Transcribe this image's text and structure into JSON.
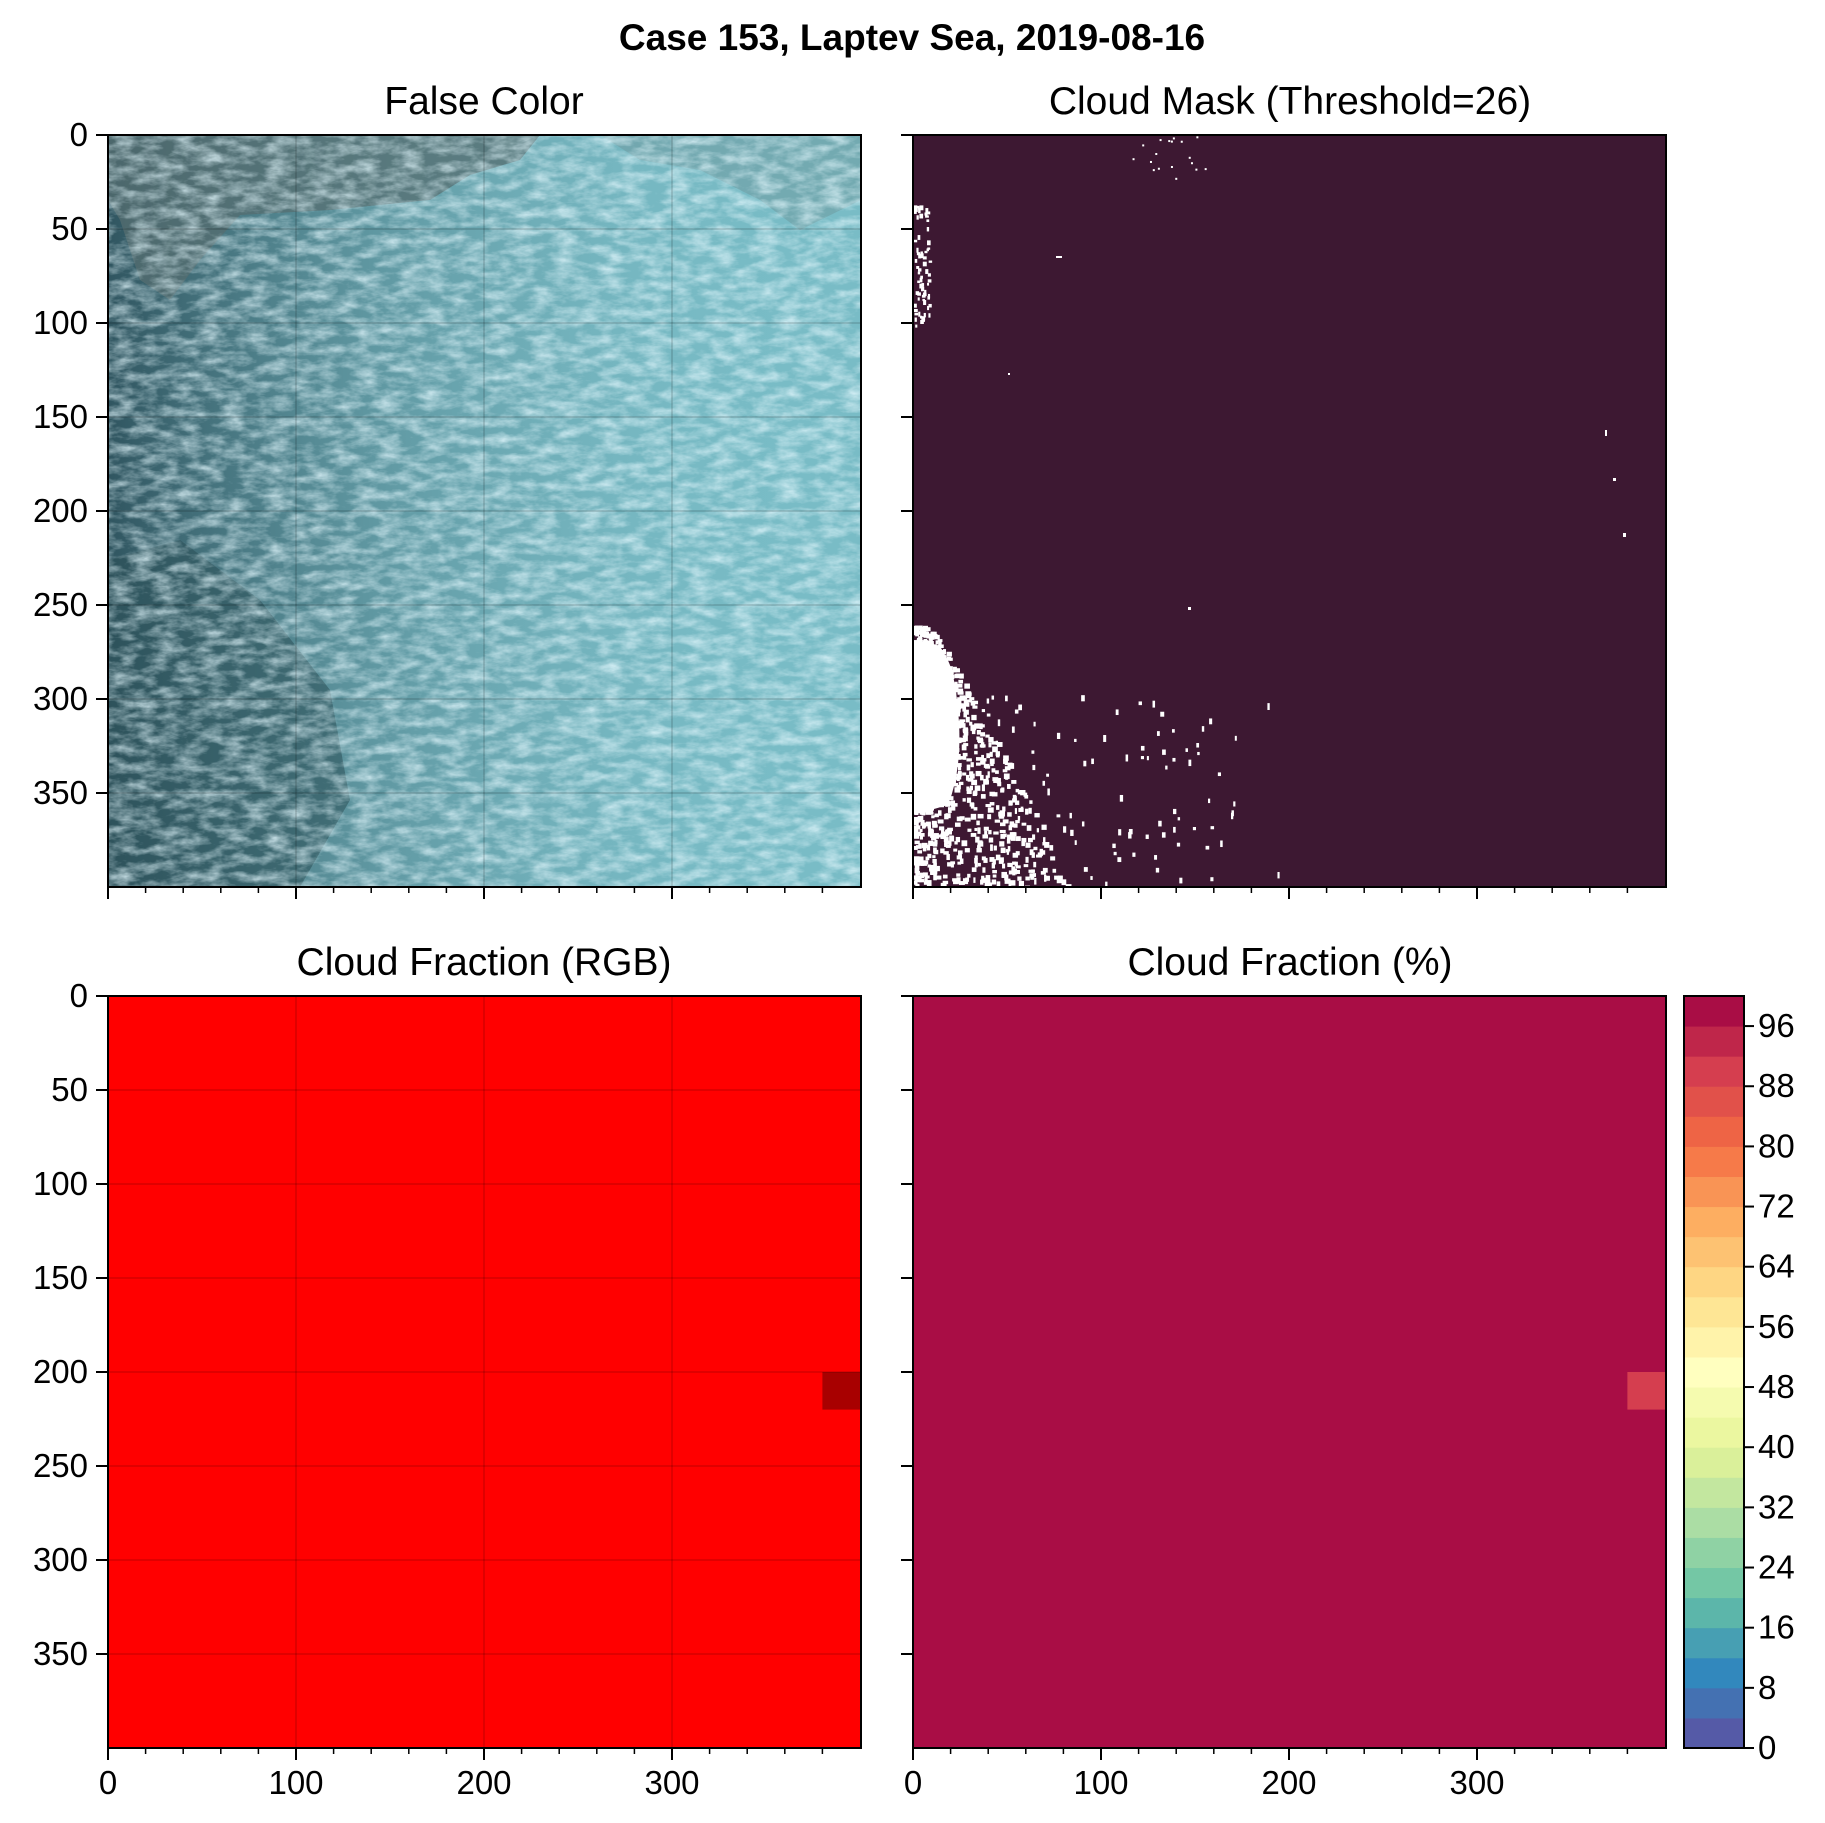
{
  "figure": {
    "suptitle": "Case 153, Laptev Sea, 2019-08-16"
  },
  "chart_data": [
    {
      "id": "false_color",
      "type": "heatmap",
      "title": "False Color",
      "xlabel": "",
      "ylabel": "",
      "xticks": [
        0,
        100,
        200,
        300
      ],
      "yticks": [
        0,
        50,
        100,
        150,
        200,
        250,
        300,
        350
      ],
      "xlim": [
        0,
        400
      ],
      "ylim": [
        400,
        0
      ],
      "grid": true,
      "x_ticklabels_shown": false,
      "y_ticklabels_shown": true,
      "note_colors": {
        "sea_ice_cyan": "#6fc6d2",
        "dark_water": "#2f5660",
        "cloud_grey": "#8fa2a6"
      }
    },
    {
      "id": "cloud_mask",
      "type": "heatmap",
      "title": "Cloud Mask (Threshold=26)",
      "xticks": [
        0,
        100,
        200,
        300
      ],
      "yticks": [
        0,
        50,
        100,
        150,
        200,
        250,
        300,
        350
      ],
      "xlim": [
        0,
        400
      ],
      "ylim": [
        400,
        0
      ],
      "grid": false,
      "x_ticklabels_shown": false,
      "y_ticklabels_shown": false,
      "colors": {
        "cloud": "#3d1832",
        "clear": "#ffffff"
      }
    },
    {
      "id": "cloud_fraction_rgb",
      "type": "heatmap",
      "title": "Cloud Fraction (RGB)",
      "xticks": [
        0,
        100,
        200,
        300
      ],
      "yticks": [
        0,
        50,
        100,
        150,
        200,
        250,
        300,
        350
      ],
      "xlim": [
        0,
        400
      ],
      "ylim": [
        400,
        0
      ],
      "grid": true,
      "x_ticklabels_shown": true,
      "y_ticklabels_shown": true,
      "block_size": 20,
      "background_color": "#ff0000",
      "cells": [
        {
          "x": 380,
          "y": 200,
          "color": "#a80000"
        }
      ]
    },
    {
      "id": "cloud_fraction_pct",
      "type": "heatmap",
      "title": "Cloud Fraction (%)",
      "xticks": [
        0,
        100,
        200,
        300
      ],
      "yticks": [
        0,
        50,
        100,
        150,
        200,
        250,
        300,
        350
      ],
      "xlim": [
        0,
        400
      ],
      "ylim": [
        400,
        0
      ],
      "grid": false,
      "x_ticklabels_shown": true,
      "y_ticklabels_shown": false,
      "block_size": 20,
      "background_value": 100,
      "cells": [
        {
          "x": 380,
          "y": 200,
          "value": 90
        }
      ],
      "colorbar": {
        "min": 0,
        "max": 100,
        "step": 4,
        "ticks": [
          0,
          8,
          16,
          24,
          32,
          40,
          48,
          56,
          64,
          72,
          80,
          88,
          96
        ]
      }
    }
  ],
  "palette": {
    "spectral_stops": [
      "#5e4fa2",
      "#3288bd",
      "#66c2a5",
      "#abdda4",
      "#e6f598",
      "#ffffbf",
      "#fee08b",
      "#fdae61",
      "#f46d43",
      "#d53e4f",
      "#9e0142"
    ]
  }
}
